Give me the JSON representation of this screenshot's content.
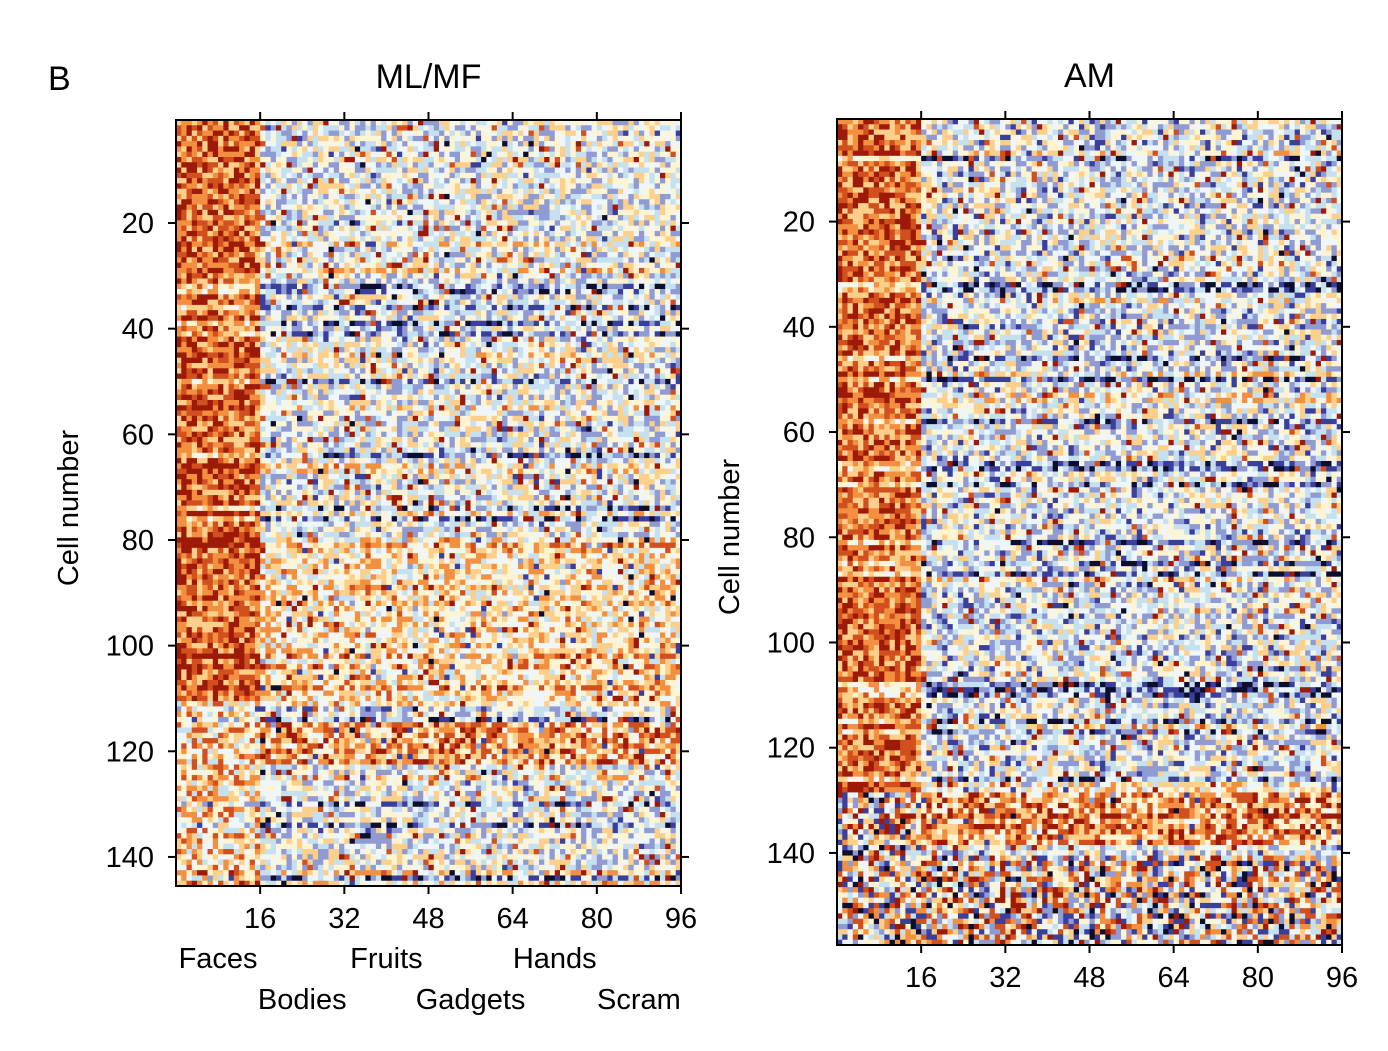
{
  "figure": {
    "panel_label": "B"
  },
  "colors": {
    "scale": [
      "#0d0d2e",
      "#3b3f9c",
      "#8f9bd2",
      "#c5e0ef",
      "#eef6fa",
      "#fff4d2",
      "#fcd08a",
      "#f29040",
      "#d24f1e",
      "#9e1a08"
    ],
    "frame": "#000000"
  },
  "chart_data": [
    {
      "type": "heatmap",
      "title": "ML/MF",
      "ylabel": "Cell number",
      "xlabel": "",
      "n_stimuli": 96,
      "n_cells": 145,
      "xticks": [
        16,
        32,
        48,
        64,
        80,
        96
      ],
      "yticks": [
        20,
        40,
        60,
        80,
        100,
        120,
        140
      ],
      "categories": [
        "Faces",
        "Bodies",
        "Fruits",
        "Gadgets",
        "Hands",
        "Scram"
      ],
      "category_ranges": [
        [
          1,
          16
        ],
        [
          17,
          32
        ],
        [
          33,
          48
        ],
        [
          49,
          64
        ],
        [
          65,
          80
        ],
        [
          81,
          96
        ]
      ],
      "description_of_pattern": "Cells 1-110 respond strongly (red) to face stimuli 1-16; other categories mostly near baseline (light blue/white); cells 115-122 broadly elevated; cells 125-145 mixed with suppressed (blue) bands"
    },
    {
      "type": "heatmap",
      "title": "AM",
      "ylabel": "Cell number",
      "xlabel": "",
      "n_stimuli": 96,
      "n_cells": 157,
      "xticks": [
        16,
        32,
        48,
        64,
        80,
        96
      ],
      "yticks": [
        20,
        40,
        60,
        80,
        100,
        120,
        140
      ],
      "categories": [],
      "description_of_pattern": "Cells 1-128 respond strongly (red) to face stimuli 1-16; non-face stimuli mostly baseline with suppressed (blue) bands; cells 128-140 broadly elevated; cells 140-157 mixed with strong suppression"
    }
  ]
}
